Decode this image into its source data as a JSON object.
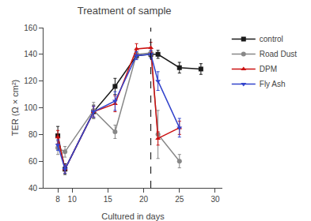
{
  "chart_data": {
    "type": "line",
    "title": "Treatment of sample",
    "xlabel": "Cultured in days",
    "ylabel": "TER (Ω × cm²)",
    "xlim": [
      6,
      31
    ],
    "ylim": [
      40,
      160
    ],
    "xticks": [
      8,
      10,
      15,
      20,
      25,
      30
    ],
    "yticks": [
      40,
      60,
      80,
      100,
      120,
      140,
      160
    ],
    "grid": false,
    "legend": "right",
    "vline": {
      "x": 21,
      "color": "#000000",
      "line_style": "dashed"
    },
    "series": [
      {
        "name": "control",
        "color": "#1a1a1a",
        "marker": "square",
        "x": [
          8,
          9,
          13,
          16,
          19,
          21,
          22,
          25,
          28
        ],
        "values": [
          79,
          54,
          97,
          116,
          139,
          140,
          140,
          130,
          129
        ],
        "yerr": [
          7,
          4,
          5,
          6,
          2,
          2,
          3,
          4,
          4
        ]
      },
      {
        "name": "Road Dust",
        "color": "#888888",
        "marker": "circle",
        "x": [
          8,
          9,
          13,
          16,
          19,
          21,
          22,
          25
        ],
        "values": [
          70,
          67,
          98,
          82,
          140,
          141,
          80,
          60
        ],
        "yerr": [
          5,
          4,
          6,
          5,
          2,
          2,
          18,
          5
        ]
      },
      {
        "name": "DPM",
        "color": "#cc1111",
        "marker": "triangle-up",
        "x": [
          8,
          9,
          13,
          16,
          19,
          21,
          22,
          25
        ],
        "values": [
          78,
          54,
          97,
          103,
          144,
          145,
          77,
          85
        ],
        "yerr": [
          5,
          3,
          4,
          6,
          4,
          4,
          5,
          5
        ]
      },
      {
        "name": "Fly Ash",
        "color": "#3344cc",
        "marker": "triangle-down",
        "x": [
          8,
          9,
          13,
          16,
          19,
          21,
          22,
          25
        ],
        "values": [
          72,
          54,
          97,
          105,
          139,
          140,
          120,
          85
        ],
        "yerr": [
          4,
          3,
          4,
          7,
          3,
          3,
          7,
          7
        ]
      }
    ]
  }
}
